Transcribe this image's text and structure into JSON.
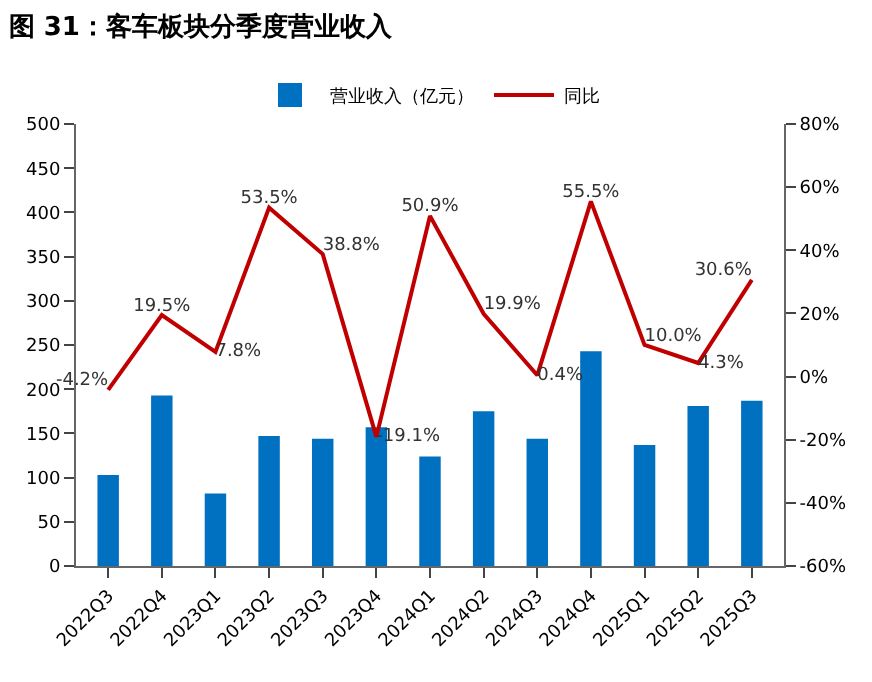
{
  "chart_data": {
    "type": "bar",
    "title": "图 31：客车板块分季度营业收入",
    "categories": [
      "2022Q3",
      "2022Q4",
      "2023Q1",
      "2023Q2",
      "2023Q3",
      "2023Q4",
      "2024Q1",
      "2024Q2",
      "2024Q3",
      "2024Q4",
      "2025Q1",
      "2025Q2",
      "2025Q3"
    ],
    "series": [
      {
        "name": "营业收入（亿元）",
        "color": "#0070c0",
        "values": [
          103,
          193,
          82,
          147,
          144,
          157,
          124,
          175,
          144,
          243,
          137,
          181,
          187
        ]
      },
      {
        "name": "同比",
        "type": "line",
        "axis": "y2",
        "color": "#c00000",
        "values": [
          -4.2,
          19.5,
          7.8,
          53.5,
          38.8,
          -19.1,
          50.9,
          19.9,
          0.4,
          55.5,
          10.0,
          4.3,
          30.6
        ],
        "value_labels": [
          "-4.2%",
          "19.5%",
          "7.8%",
          "53.5%",
          "38.8%",
          "-19.1%",
          "50.9%",
          "19.9%",
          "0.4%",
          "55.5%",
          "10.0%",
          "4.3%",
          "30.6%"
        ]
      }
    ],
    "ylim": [
      0,
      500
    ],
    "yticks": [
      0,
      50,
      100,
      150,
      200,
      250,
      300,
      350,
      400,
      450,
      500
    ],
    "y2lim": [
      -60,
      80
    ],
    "y2ticks": [
      {
        "value": -60,
        "label": "-60%"
      },
      {
        "value": -40,
        "label": "-40%"
      },
      {
        "value": -20,
        "label": "-20%"
      },
      {
        "value": 0,
        "label": "0%"
      },
      {
        "value": 20,
        "label": "20%"
      },
      {
        "value": 40,
        "label": "40%"
      },
      {
        "value": 60,
        "label": "60%"
      },
      {
        "value": 80,
        "label": "80%"
      }
    ],
    "legend": "top",
    "grid": false
  }
}
